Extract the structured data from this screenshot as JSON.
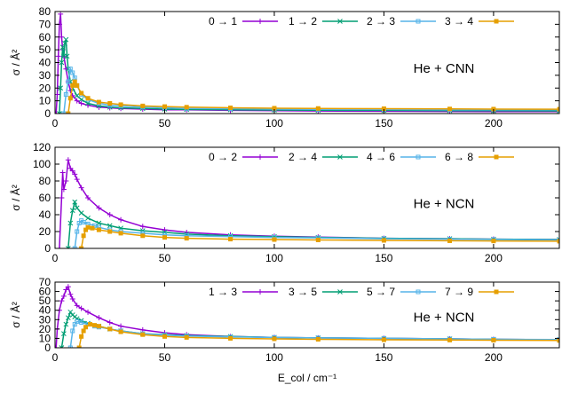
{
  "chart_data": [
    {
      "type": "line",
      "ylabel": "σ / Å²",
      "annotation": "He + CNN",
      "xlim": [
        0,
        230
      ],
      "ylim": [
        0,
        80
      ],
      "xticks": [
        0,
        50,
        100,
        150,
        200
      ],
      "yticks": [
        0,
        10,
        20,
        30,
        40,
        50,
        60,
        70,
        80
      ],
      "legend_position": "top-right",
      "series": [
        {
          "name": "0 → 1",
          "color": "#9400d3",
          "marker": "plus",
          "x": [
            0.5,
            1,
            1.5,
            2,
            2.5,
            3,
            3.5,
            4,
            5,
            6,
            7,
            8,
            10,
            12,
            15,
            20,
            25,
            30,
            40,
            50,
            60,
            80,
            100,
            120,
            150,
            180,
            200,
            230
          ],
          "y": [
            0,
            15,
            45,
            70,
            78,
            60,
            50,
            45,
            35,
            25,
            18,
            14,
            10,
            8,
            6.5,
            5,
            4.5,
            4,
            3.5,
            3,
            3,
            2.5,
            2.2,
            2,
            1.8,
            1.7,
            1.6,
            1.5
          ]
        },
        {
          "name": "1 → 2",
          "color": "#009e73",
          "marker": "cross",
          "x": [
            2,
            2.5,
            3,
            3.5,
            4,
            4.5,
            5,
            5.5,
            6,
            7,
            8,
            10,
            12,
            15,
            20,
            25,
            30,
            40,
            50,
            60,
            80,
            100,
            120,
            150,
            180,
            200,
            230
          ],
          "y": [
            0,
            20,
            40,
            52,
            45,
            55,
            58,
            45,
            35,
            25,
            20,
            14,
            11,
            8,
            6,
            5,
            4.5,
            4,
            3.5,
            3.2,
            3,
            2.8,
            2.6,
            2.5,
            2.3,
            2.2,
            2.1
          ]
        },
        {
          "name": "2 → 3",
          "color": "#56b4e9",
          "marker": "square",
          "x": [
            4,
            5,
            6,
            7,
            8,
            9,
            10,
            12,
            15,
            20,
            25,
            30,
            40,
            50,
            60,
            80,
            100,
            120,
            150,
            180,
            200,
            230
          ],
          "y": [
            0,
            15,
            25,
            35,
            32,
            28,
            22,
            15,
            11,
            8,
            6.5,
            6,
            5,
            4.5,
            4,
            3.8,
            3.5,
            3.3,
            3.2,
            3,
            3,
            2.9
          ]
        },
        {
          "name": "3 → 4",
          "color": "#e69f00",
          "marker": "filled-square",
          "x": [
            6,
            7,
            8,
            9,
            10,
            12,
            15,
            20,
            25,
            30,
            40,
            50,
            60,
            80,
            100,
            120,
            150,
            180,
            200,
            230
          ],
          "y": [
            0,
            12,
            22,
            25,
            22,
            16,
            12,
            9,
            8,
            7,
            6,
            5.5,
            5,
            4.5,
            4.2,
            4,
            3.8,
            3.6,
            3.5,
            3.4
          ]
        }
      ]
    },
    {
      "type": "line",
      "ylabel": "σ / Å²",
      "annotation": "He + NCN",
      "xlim": [
        0,
        230
      ],
      "ylim": [
        0,
        120
      ],
      "xticks": [
        0,
        50,
        100,
        150,
        200
      ],
      "yticks": [
        0,
        20,
        40,
        60,
        80,
        100,
        120
      ],
      "legend_position": "top-right",
      "series": [
        {
          "name": "0 → 2",
          "color": "#9400d3",
          "marker": "plus",
          "x": [
            2,
            3,
            3.5,
            4,
            5,
            6,
            7,
            8,
            9,
            10,
            12,
            15,
            20,
            25,
            30,
            40,
            50,
            60,
            80,
            100,
            120,
            150,
            180,
            200,
            230
          ],
          "y": [
            0,
            60,
            90,
            70,
            80,
            105,
            95,
            92,
            88,
            82,
            72,
            60,
            48,
            40,
            34,
            26,
            22,
            19,
            16,
            14.5,
            13.5,
            12,
            11.5,
            11,
            10.5
          ]
        },
        {
          "name": "2 → 4",
          "color": "#009e73",
          "marker": "cross",
          "x": [
            6,
            7,
            8,
            9,
            10,
            12,
            15,
            20,
            25,
            30,
            40,
            50,
            60,
            80,
            100,
            120,
            150,
            180,
            200,
            230
          ],
          "y": [
            0,
            30,
            45,
            55,
            48,
            42,
            36,
            30,
            27,
            24,
            21,
            19,
            17,
            15,
            14,
            13,
            12,
            11.5,
            11,
            10.5
          ]
        },
        {
          "name": "4 → 6",
          "color": "#56b4e9",
          "marker": "square",
          "x": [
            9,
            10,
            11,
            12,
            13,
            15,
            18,
            20,
            25,
            30,
            40,
            50,
            60,
            80,
            100,
            120,
            150,
            180,
            200,
            230
          ],
          "y": [
            0,
            20,
            30,
            33,
            31,
            29,
            27,
            25,
            22,
            20,
            18,
            16,
            15,
            14,
            13,
            12.5,
            11.5,
            11,
            10.5,
            10
          ]
        },
        {
          "name": "6 → 8",
          "color": "#e69f00",
          "marker": "filled-square",
          "x": [
            12,
            13,
            14,
            15,
            17,
            20,
            25,
            30,
            40,
            50,
            60,
            80,
            100,
            120,
            150,
            180,
            200,
            230
          ],
          "y": [
            0,
            15,
            22,
            25,
            24,
            22,
            20,
            18,
            15,
            13,
            12,
            11,
            10.5,
            10,
            9.5,
            9,
            8.8,
            8.5
          ]
        }
      ]
    },
    {
      "type": "line",
      "ylabel": "σ / Å²",
      "annotation": "He + NCN",
      "xlabel": "E_col / cm⁻¹",
      "xlim": [
        0,
        230
      ],
      "ylim": [
        0,
        70
      ],
      "xticks": [
        0,
        50,
        100,
        150,
        200
      ],
      "yticks": [
        0,
        10,
        20,
        30,
        40,
        50,
        60,
        70
      ],
      "legend_position": "top-right",
      "series": [
        {
          "name": "1 → 3",
          "color": "#9400d3",
          "marker": "plus",
          "x": [
            0.5,
            1,
            2,
            3,
            4,
            5,
            6,
            7,
            8,
            10,
            12,
            15,
            20,
            25,
            30,
            40,
            50,
            60,
            80,
            100,
            120,
            150,
            180,
            200,
            230
          ],
          "y": [
            0,
            20,
            40,
            50,
            55,
            62,
            65,
            57,
            52,
            45,
            42,
            38,
            32,
            27,
            23,
            19,
            16,
            14,
            12,
            11,
            10.5,
            10,
            9.5,
            9,
            8.5
          ]
        },
        {
          "name": "3 → 5",
          "color": "#009e73",
          "marker": "cross",
          "x": [
            3,
            4,
            5,
            6,
            7,
            8,
            9,
            10,
            12,
            15,
            20,
            25,
            30,
            40,
            50,
            60,
            80,
            100,
            120,
            150,
            180,
            200,
            230
          ],
          "y": [
            0,
            15,
            25,
            32,
            38,
            35,
            33,
            31,
            29,
            26,
            23,
            20,
            18,
            15,
            14,
            13,
            12,
            11,
            10.5,
            10,
            9.5,
            9,
            8.5
          ]
        },
        {
          "name": "5 → 7",
          "color": "#56b4e9",
          "marker": "square",
          "x": [
            7,
            8,
            9,
            10,
            12,
            15,
            18,
            20,
            25,
            30,
            40,
            50,
            60,
            80,
            100,
            120,
            150,
            180,
            200,
            230
          ],
          "y": [
            0,
            18,
            25,
            28,
            27,
            25,
            23,
            22,
            20,
            18,
            15,
            13.5,
            12.5,
            11.5,
            11,
            10.5,
            10,
            9.5,
            9,
            8.8
          ]
        },
        {
          "name": "7 → 9",
          "color": "#e69f00",
          "marker": "filled-square",
          "x": [
            11,
            12,
            13,
            14,
            16,
            18,
            20,
            25,
            30,
            40,
            50,
            60,
            80,
            100,
            120,
            150,
            180,
            200,
            230
          ],
          "y": [
            0,
            12,
            18,
            22,
            25,
            24,
            23,
            20,
            17,
            14,
            12,
            11,
            10,
            9.5,
            9,
            8.5,
            8.2,
            8,
            7.8
          ]
        }
      ]
    }
  ]
}
